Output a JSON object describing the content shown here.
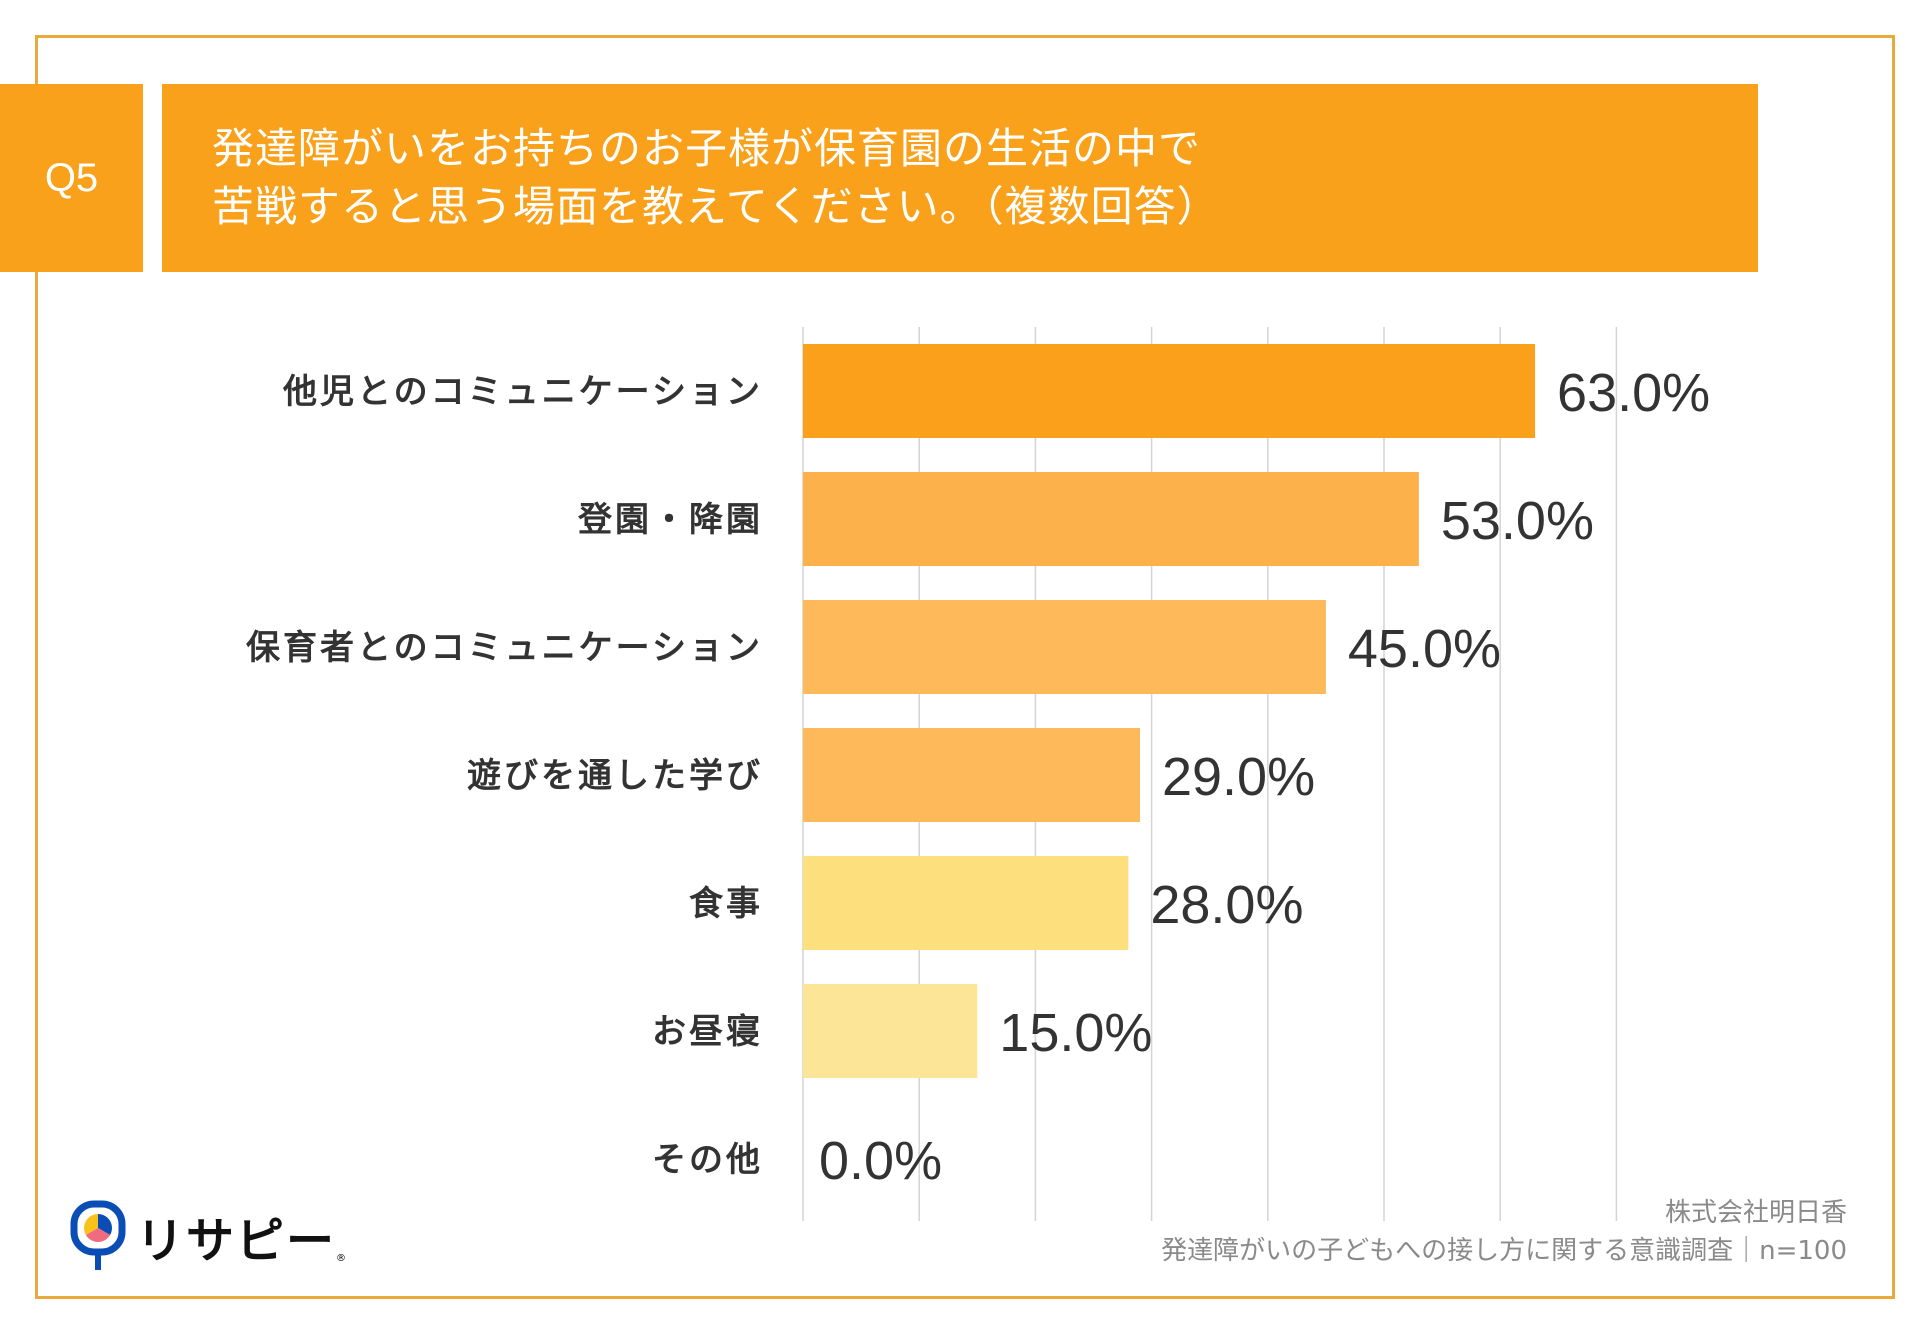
{
  "question": {
    "label": "Q5",
    "title_lines": [
      "発達障がいをお持ちのお子様が保育園の生活の中で",
      "苦戦すると思う場面を教えてください。（複数回答）"
    ]
  },
  "colors": {
    "frame": "#E9A93B",
    "title_bg": "#F9A11B",
    "bars": [
      "#FBA01A",
      "#FDB14B",
      "#FDB95A",
      "#FDB95A",
      "#FDDF7D",
      "#FDE597",
      "#FDE597"
    ]
  },
  "chart_data": {
    "type": "bar",
    "orientation": "horizontal",
    "categories": [
      "他児とのコミュニケーション",
      "登園・降園",
      "保育者とのコミュニケーション",
      "遊びを通した学び",
      "食事",
      "お昼寝",
      "その他"
    ],
    "values": [
      63.0,
      53.0,
      45.0,
      29.0,
      28.0,
      15.0,
      0.0
    ],
    "value_labels": [
      "63.0%",
      "53.0%",
      "45.0%",
      "29.0%",
      "28.0%",
      "15.0%",
      "0.0%"
    ],
    "xlim": [
      0,
      70
    ],
    "grid_step": 10,
    "grid": true,
    "unit": "%"
  },
  "footer": {
    "company": "株式会社明日香",
    "survey": "発達障がいの子どもへの接し方に関する意識調査｜n=100"
  },
  "logo": {
    "text": "リサピー",
    "mark": "®",
    "colors": [
      "#0A4DB5",
      "#F9C21B",
      "#F06B7F"
    ]
  }
}
